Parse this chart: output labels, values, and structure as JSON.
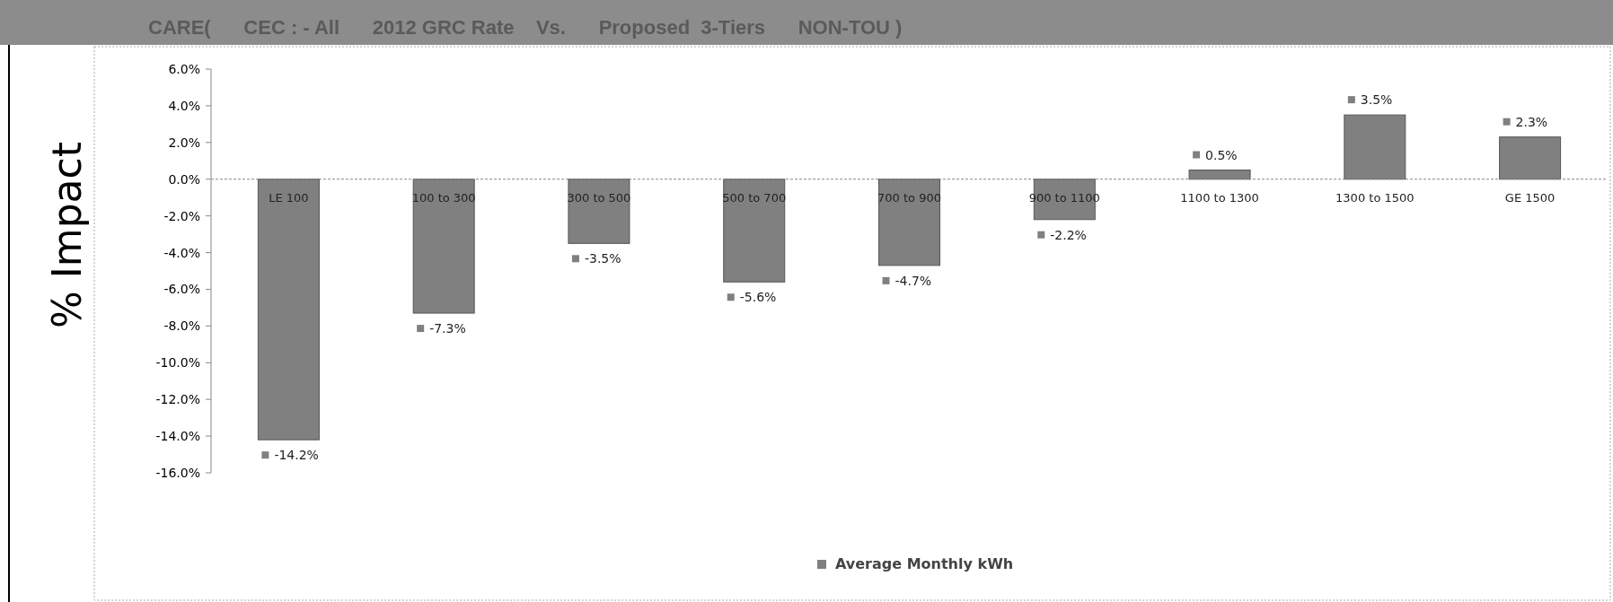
{
  "chart_data": {
    "type": "bar",
    "title": "CARE(      CEC : - All      2012 GRC Rate    Vs.      Proposed  3-Tiers      NON-TOU )",
    "ylabel": "% Impact",
    "categories": [
      "LE 100",
      "100 to 300",
      "300 to 500",
      "500 to 700",
      "700 to 900",
      "900 to 1100",
      "1100 to 1300",
      "1300 to 1500",
      "GE 1500"
    ],
    "series": [
      {
        "name": "Average Monthly kWh",
        "color": "#808080",
        "values": [
          -14.2,
          -7.3,
          -3.5,
          -5.6,
          -4.7,
          -2.2,
          0.5,
          3.5,
          2.3
        ],
        "value_labels": [
          "-14.2%",
          "-7.3%",
          "-3.5%",
          "-5.6%",
          "-4.7%",
          "-2.2%",
          "0.5%",
          "3.5%",
          "2.3%"
        ]
      }
    ],
    "ylim": [
      -16,
      6
    ],
    "yticks": [
      {
        "value": 6,
        "label": "6.0%"
      },
      {
        "value": 4,
        "label": "4.0%"
      },
      {
        "value": 2,
        "label": "2.0%"
      },
      {
        "value": 0,
        "label": "0.0%"
      },
      {
        "value": -2,
        "label": "-2.0%"
      },
      {
        "value": -4,
        "label": "-4.0%"
      },
      {
        "value": -6,
        "label": "-6.0%"
      },
      {
        "value": -8,
        "label": "-8.0%"
      },
      {
        "value": -10,
        "label": "-10.0%"
      },
      {
        "value": -12,
        "label": "-12.0%"
      },
      {
        "value": -14,
        "label": "-14.0%"
      },
      {
        "value": -16,
        "label": "-16.0%"
      }
    ],
    "legend": "bottom"
  }
}
